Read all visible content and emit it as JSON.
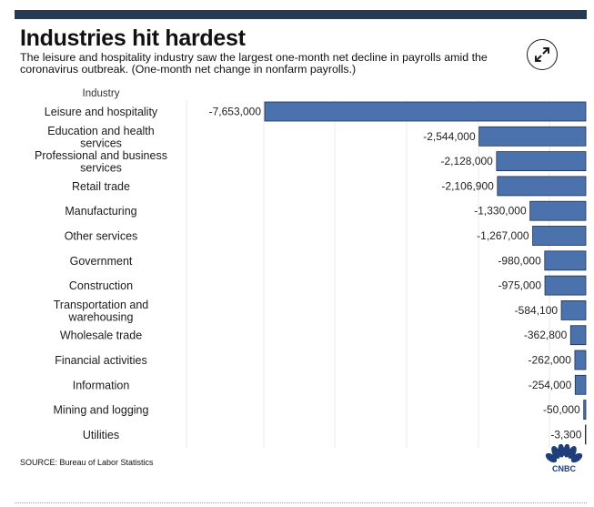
{
  "header": {
    "title": "Industries hit hardest",
    "subtitle": "The leisure and hospitality industry saw the largest one-month net decline in payrolls amid the coronavirus outbreak. (One-month net change in nonfarm payrolls.)"
  },
  "expand_icon": "expand-arrows-icon",
  "source": "SOURCE: Bureau of Labor Statistics",
  "logo": {
    "name": "cnbc-peacock-logo",
    "text": "CNBC"
  },
  "colors": {
    "bar": "#4b72ac",
    "bar_stroke": "#1f2f46",
    "topbar": "#263a53",
    "grid": "#e8e8e8"
  },
  "chart_data": {
    "type": "bar",
    "orientation": "horizontal",
    "category_header": "Industry",
    "categories": [
      [
        "Leisure and hospitality"
      ],
      [
        "Education and health",
        "services"
      ],
      [
        "Professional and business",
        "services"
      ],
      [
        "Retail trade"
      ],
      [
        "Manufacturing"
      ],
      [
        "Other services"
      ],
      [
        "Government"
      ],
      [
        "Construction"
      ],
      [
        "Transportation and",
        "warehousing"
      ],
      [
        "Wholesale trade"
      ],
      [
        "Financial activities"
      ],
      [
        "Information"
      ],
      [
        "Mining and logging"
      ],
      [
        "Utilities"
      ]
    ],
    "values": [
      -7653000,
      -2544000,
      -2128000,
      -2106900,
      -1330000,
      -1267000,
      -980000,
      -975000,
      -584100,
      -362800,
      -262000,
      -254000,
      -50000,
      -3300
    ],
    "value_labels": [
      "-7,653,000",
      "-2,544,000",
      "-2,128,000",
      "-2,106,900",
      "-1,330,000",
      "-1,267,000",
      "-980,000",
      "-975,000",
      "-584,100",
      "-362,800",
      "-262,000",
      "-254,000",
      "-50,000",
      "-3,300"
    ],
    "xlim": [
      -7653000,
      0
    ],
    "grid": true
  }
}
